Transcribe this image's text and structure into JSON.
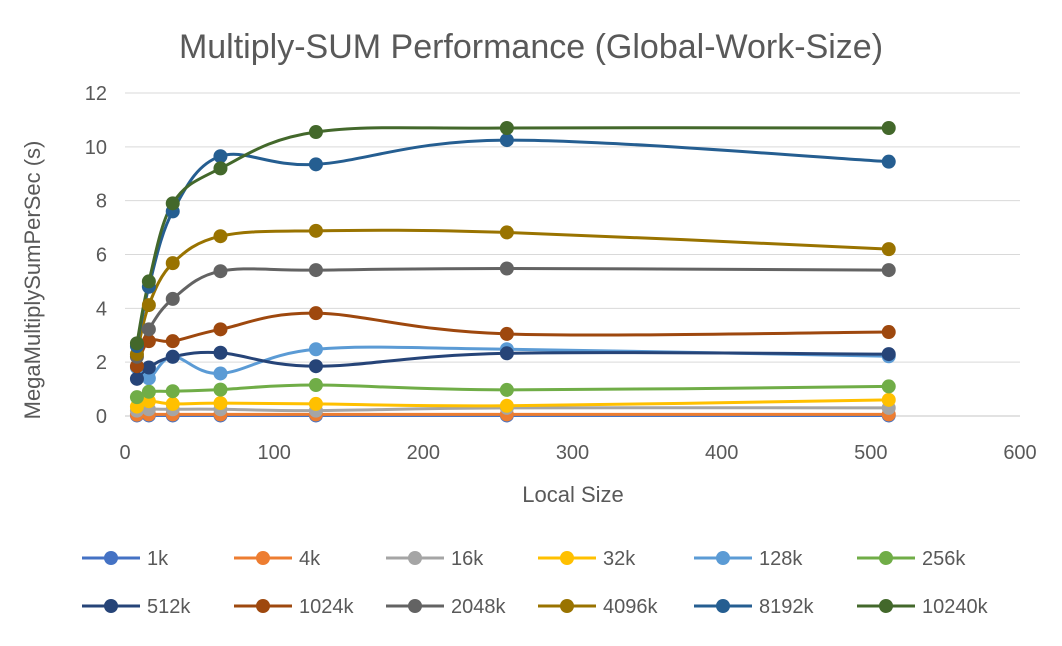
{
  "chart_data": {
    "type": "line",
    "title": "Multiply-SUM Performance (Global-Work-Size)",
    "xlabel": "Local Size",
    "ylabel": "MegaMultiplySumPerSec (s)",
    "xlim": [
      0,
      600
    ],
    "ylim": [
      0,
      12
    ],
    "xticks": [
      0,
      100,
      200,
      300,
      400,
      500,
      600
    ],
    "yticks": [
      0,
      2,
      4,
      6,
      8,
      10,
      12
    ],
    "grid": true,
    "smooth": true,
    "legend_position": "bottom",
    "x": [
      8,
      16,
      32,
      64,
      128,
      256,
      512
    ],
    "series": [
      {
        "name": "1k",
        "color": "#4472C4",
        "values": [
          0.02,
          0.02,
          0.02,
          0.02,
          0.02,
          0.02,
          0.02
        ]
      },
      {
        "name": "4k",
        "color": "#ED7D31",
        "values": [
          0.05,
          0.06,
          0.06,
          0.06,
          0.06,
          0.06,
          0.06
        ]
      },
      {
        "name": "16k",
        "color": "#A5A5A5",
        "values": [
          0.2,
          0.25,
          0.25,
          0.25,
          0.2,
          0.3,
          0.3
        ]
      },
      {
        "name": "32k",
        "color": "#FFC000",
        "values": [
          0.35,
          0.55,
          0.45,
          0.48,
          0.45,
          0.38,
          0.6
        ]
      },
      {
        "name": "128k",
        "color": "#5B9BD5",
        "values": [
          1.8,
          1.4,
          2.2,
          1.58,
          2.48,
          2.48,
          2.22
        ]
      },
      {
        "name": "256k",
        "color": "#70AD47",
        "values": [
          0.7,
          0.9,
          0.92,
          0.98,
          1.15,
          0.97,
          1.1
        ]
      },
      {
        "name": "512k",
        "color": "#264478",
        "values": [
          1.38,
          1.8,
          2.2,
          2.35,
          1.85,
          2.33,
          2.3
        ]
      },
      {
        "name": "1024k",
        "color": "#9E480E",
        "values": [
          1.85,
          2.78,
          2.78,
          3.22,
          3.82,
          3.05,
          3.12
        ]
      },
      {
        "name": "2048k",
        "color": "#636363",
        "values": [
          2.2,
          3.22,
          4.35,
          5.38,
          5.42,
          5.48,
          5.42
        ]
      },
      {
        "name": "4096k",
        "color": "#997300",
        "values": [
          2.3,
          4.12,
          5.68,
          6.68,
          6.88,
          6.82,
          6.2
        ]
      },
      {
        "name": "8192k",
        "color": "#255E91",
        "values": [
          2.6,
          4.8,
          7.6,
          9.65,
          9.35,
          10.25,
          9.45
        ]
      },
      {
        "name": "10240k",
        "color": "#43682B",
        "values": [
          2.7,
          5.0,
          7.9,
          9.2,
          10.55,
          10.7,
          10.7
        ]
      }
    ]
  }
}
